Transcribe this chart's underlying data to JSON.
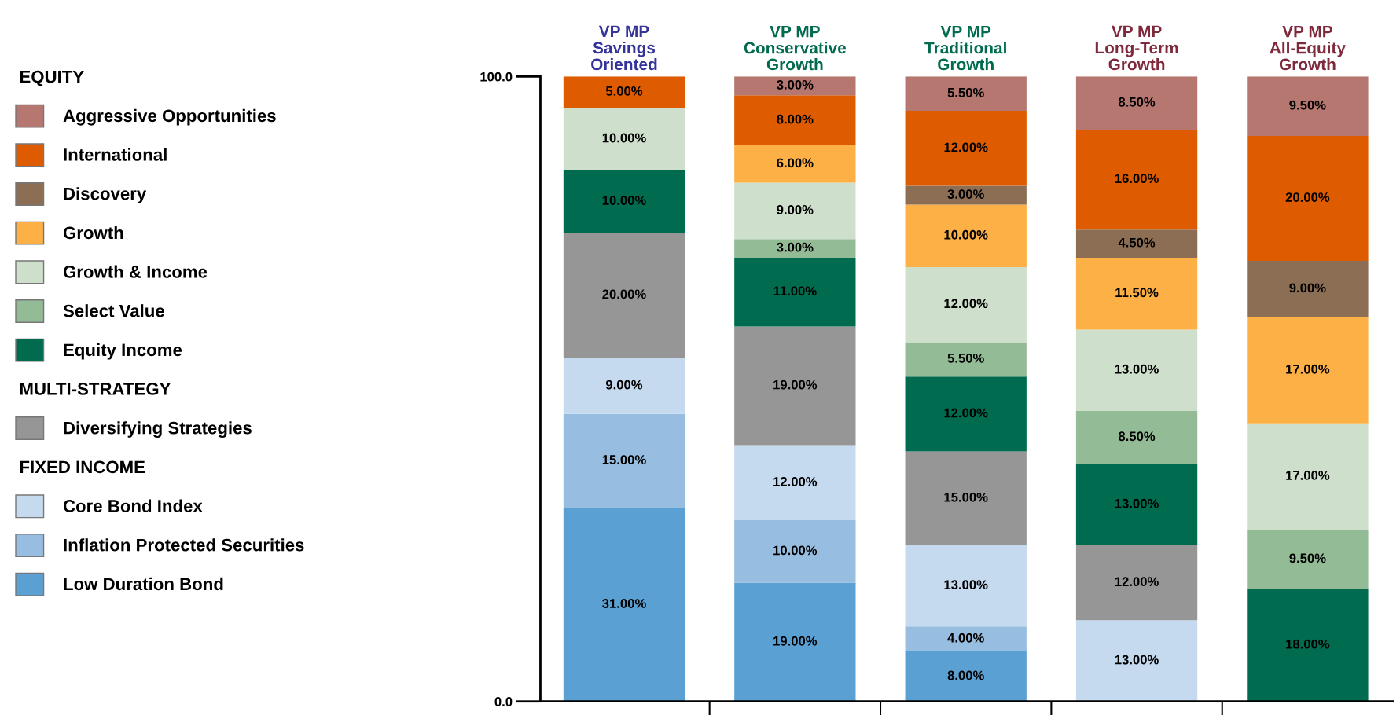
{
  "chart_data": {
    "type": "bar",
    "stacked": true,
    "categories": [
      "VP MP\nSavings\nOriented",
      "VP MP\nConservative\nGrowth",
      "VP MP\nTraditional\nGrowth",
      "VP MP\nLong-Term\nGrowth",
      "VP MP\nAll-Equity\nGrowth"
    ],
    "ylim": [
      0,
      100
    ],
    "yticks": [
      {
        "value": 0,
        "label": "0.0"
      },
      {
        "value": 100,
        "label": "100.0"
      }
    ],
    "legend": "left",
    "grid": false,
    "annotations": [
      "EQUITY",
      "MULTI-STRATEGY",
      "FIXED INCOME"
    ],
    "series": [
      {
        "name": "Low Duration Bond",
        "color": "#5ba0d3",
        "values": [
          31,
          19,
          8,
          null,
          null
        ],
        "value_labels": [
          "31.00%",
          "19.00%",
          "8.00%",
          null,
          null
        ]
      },
      {
        "name": "Inflation Protected Securities",
        "color": "#97bde0",
        "values": [
          15,
          10,
          4,
          null,
          null
        ],
        "value_labels": [
          "15.00%",
          "10.00%",
          "4.00%",
          null,
          null
        ]
      },
      {
        "name": "Core Bond Index",
        "color": "#c5d9ef",
        "values": [
          9,
          12,
          13,
          13,
          null
        ],
        "value_labels": [
          "9.00%",
          "12.00%",
          "13.00%",
          "13.00%",
          null
        ]
      },
      {
        "name": "Diversifying Strategies",
        "color": "#969696",
        "values": [
          20,
          19,
          15,
          12,
          null
        ],
        "value_labels": [
          "20.00%",
          "19.00%",
          "15.00%",
          "12.00%",
          null
        ]
      },
      {
        "name": "Equity Income",
        "color": "#006b4f",
        "values": [
          10,
          11,
          12,
          13,
          18
        ],
        "value_labels": [
          "10.00%",
          "11.00%",
          "12.00%",
          "13.00%",
          "18.00%"
        ]
      },
      {
        "name": "Select Value",
        "color": "#93bb96",
        "values": [
          null,
          3,
          5.5,
          8.5,
          9.5
        ],
        "value_labels": [
          null,
          "3.00%",
          "5.50%",
          "8.50%",
          "9.50%"
        ]
      },
      {
        "name": "Growth & Income",
        "color": "#cee0cc",
        "values": [
          10,
          9,
          12,
          13,
          17
        ],
        "value_labels": [
          "10.00%",
          "9.00%",
          "12.00%",
          "13.00%",
          "17.00%"
        ]
      },
      {
        "name": "Growth",
        "color": "#fdb045",
        "values": [
          null,
          6,
          10,
          11.5,
          17
        ],
        "value_labels": [
          null,
          "6.00%",
          "10.00%",
          "11.50%",
          "17.00%"
        ]
      },
      {
        "name": "Discovery",
        "color": "#8c6e55",
        "values": [
          null,
          null,
          3,
          4.5,
          9
        ],
        "value_labels": [
          null,
          null,
          "3.00%",
          "4.50%",
          "9.00%"
        ]
      },
      {
        "name": "International",
        "color": "#de5b00",
        "values": [
          5,
          8,
          12,
          16,
          20
        ],
        "value_labels": [
          "5.00%",
          "8.00%",
          "12.00%",
          "16.00%",
          "20.00%"
        ]
      },
      {
        "name": "Aggressive Opportunities",
        "color": "#b5776f",
        "values": [
          null,
          3,
          5.5,
          8.5,
          9.5
        ],
        "value_labels": [
          null,
          "3.00%",
          "5.50%",
          "8.50%",
          "9.50%"
        ]
      }
    ]
  }
}
